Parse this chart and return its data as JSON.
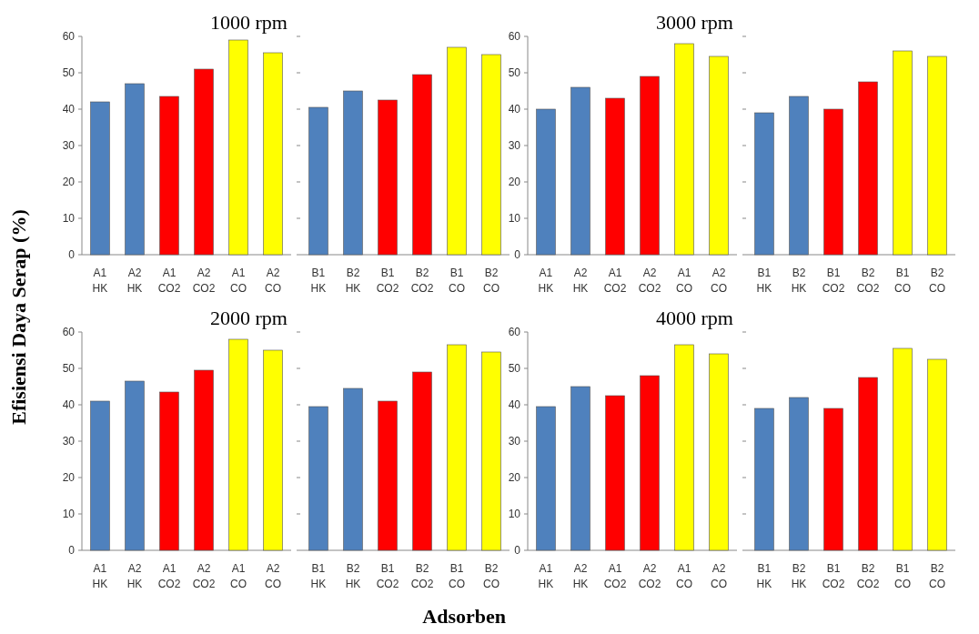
{
  "chart_data": [
    {
      "type": "bar",
      "title": "1000 rpm",
      "ylabel": "Efisiensi Daya Serap (%)",
      "categories": [
        "A1 HK",
        "A2 HK",
        "A1 CO2",
        "A2 CO2",
        "A1 CO",
        "A2 CO"
      ],
      "values": [
        42,
        47,
        43.5,
        51,
        59,
        55.5
      ],
      "colors": [
        "#4f81bd",
        "#4f81bd",
        "#ff0000",
        "#ff0000",
        "#ffff00",
        "#ffff00"
      ],
      "ylim": [
        0,
        60
      ],
      "yticks": [
        0,
        10,
        20,
        30,
        40,
        50,
        60
      ]
    },
    {
      "type": "bar",
      "categories": [
        "B1 HK",
        "B2 HK",
        "B1 CO2",
        "B2 CO2",
        "B1 CO",
        "B2 CO"
      ],
      "values": [
        40.5,
        45,
        42.5,
        49.5,
        57,
        55
      ],
      "colors": [
        "#4f81bd",
        "#4f81bd",
        "#ff0000",
        "#ff0000",
        "#ffff00",
        "#ffff00"
      ],
      "ylim": [
        0,
        60
      ],
      "yticks": [
        0,
        10,
        20,
        30,
        40,
        50,
        60
      ],
      "tick_labels": "x"
    },
    {
      "type": "bar",
      "title": "3000 rpm",
      "categories": [
        "A1 HK",
        "A2 HK",
        "A1 CO2",
        "A2 CO2",
        "A1 CO",
        "A2 CO"
      ],
      "values": [
        40,
        46,
        43,
        49,
        58,
        54.5
      ],
      "colors": [
        "#4f81bd",
        "#4f81bd",
        "#ff0000",
        "#ff0000",
        "#ffff00",
        "#ffff00"
      ],
      "ylim": [
        0,
        60
      ],
      "yticks": [
        0,
        10,
        20,
        30,
        40,
        50,
        60
      ]
    },
    {
      "type": "bar",
      "categories": [
        "B1 HK",
        "B2 HK",
        "B1 CO2",
        "B2 CO2",
        "B1 CO",
        "B2 CO"
      ],
      "values": [
        39,
        43.5,
        40,
        47.5,
        56,
        54.5
      ],
      "colors": [
        "#4f81bd",
        "#4f81bd",
        "#ff0000",
        "#ff0000",
        "#ffff00",
        "#ffff00"
      ],
      "ylim": [
        0,
        60
      ],
      "yticks": [
        0,
        10,
        20,
        30,
        40,
        50,
        60
      ],
      "tick_labels": "x"
    },
    {
      "type": "bar",
      "title": "2000 rpm",
      "categories": [
        "A1 HK",
        "A2 HK",
        "A1 CO2",
        "A2 CO2",
        "A1 CO",
        "A2 CO"
      ],
      "values": [
        41,
        46.5,
        43.5,
        49.5,
        58,
        55
      ],
      "colors": [
        "#4f81bd",
        "#4f81bd",
        "#ff0000",
        "#ff0000",
        "#ffff00",
        "#ffff00"
      ],
      "ylim": [
        0,
        60
      ],
      "yticks": [
        0,
        10,
        20,
        30,
        40,
        50,
        60
      ]
    },
    {
      "type": "bar",
      "xlabel": "Adsorben",
      "categories": [
        "B1 HK",
        "B2 HK",
        "B1 CO2",
        "B2 CO2",
        "B1 CO",
        "B2 CO"
      ],
      "values": [
        39.5,
        44.5,
        41,
        49,
        56.5,
        54.5
      ],
      "colors": [
        "#4f81bd",
        "#4f81bd",
        "#ff0000",
        "#ff0000",
        "#ffff00",
        "#ffff00"
      ],
      "ylim": [
        0,
        60
      ],
      "yticks": [
        0,
        10,
        20,
        30,
        40,
        50,
        60
      ],
      "tick_labels": "x"
    },
    {
      "type": "bar",
      "title": "4000 rpm",
      "categories": [
        "A1 HK",
        "A2 HK",
        "A1 CO2",
        "A2 CO2",
        "A1 CO",
        "A2 CO"
      ],
      "values": [
        39.5,
        45,
        42.5,
        48,
        56.5,
        54
      ],
      "colors": [
        "#4f81bd",
        "#4f81bd",
        "#ff0000",
        "#ff0000",
        "#ffff00",
        "#ffff00"
      ],
      "ylim": [
        0,
        60
      ],
      "yticks": [
        0,
        10,
        20,
        30,
        40,
        50,
        60
      ]
    },
    {
      "type": "bar",
      "categories": [
        "B1 HK",
        "B2 HK",
        "B1 CO2",
        "B2 CO2",
        "B1 CO",
        "B2 CO"
      ],
      "values": [
        39,
        42,
        39,
        47.5,
        55.5,
        52.5
      ],
      "colors": [
        "#4f81bd",
        "#4f81bd",
        "#ff0000",
        "#ff0000",
        "#ffff00",
        "#ffff00"
      ],
      "ylim": [
        0,
        60
      ],
      "yticks": [
        0,
        10,
        20,
        30,
        40,
        50,
        60
      ],
      "tick_labels": "x"
    }
  ]
}
